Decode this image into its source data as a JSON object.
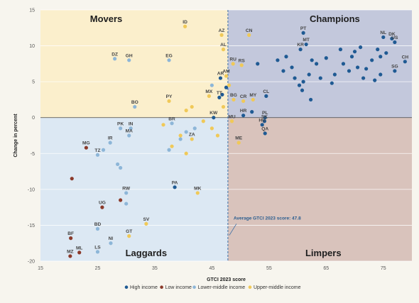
{
  "chart_data": {
    "type": "scatter",
    "xlabel": "GTCI 2023 score",
    "ylabel": "Change in percent",
    "xlim": [
      15,
      80
    ],
    "ylim": [
      -20,
      15
    ],
    "xticks": [
      15,
      25,
      35,
      45,
      55,
      65,
      75
    ],
    "yticks": [
      15,
      10,
      5,
      0,
      -5,
      -10,
      -15,
      -20
    ],
    "average": {
      "x": 47.8,
      "label": "Average GTCI 2023 score: 47.8"
    },
    "quadrants": {
      "top_left": "Movers",
      "top_right": "Champions",
      "bottom_left": "Laggards",
      "bottom_right": "Limpers"
    },
    "colors": {
      "High income": "#1f5a93",
      "Low income": "#8b3a2a",
      "Lower-middle income": "#8db6d8",
      "Upper-middle income": "#f0c958",
      "tl_bg": "#fbefcc",
      "tr_bg": "#c3c8dc",
      "bl_bg": "#dce8f3",
      "br_bg": "#d9c3bc",
      "avg_line": "#3a6ea5"
    },
    "series": [
      {
        "name": "High income",
        "points": [
          {
            "x": 61.0,
            "y": 11.8,
            "label": "PT"
          },
          {
            "x": 61.5,
            "y": 10.2,
            "label": "MT"
          },
          {
            "x": 60.5,
            "y": 9.5,
            "label": "KR"
          },
          {
            "x": 75.0,
            "y": 11.2,
            "label": "NL"
          },
          {
            "x": 76.5,
            "y": 11.0,
            "label": "DK"
          },
          {
            "x": 77.0,
            "y": 10.5,
            "label": "US"
          },
          {
            "x": 78.8,
            "y": 7.8,
            "label": "CH"
          },
          {
            "x": 77.0,
            "y": 6.5,
            "label": "SG"
          },
          {
            "x": 54.5,
            "y": 3.0,
            "label": "CL"
          },
          {
            "x": 54.3,
            "y": 0.0,
            "label": "PL"
          },
          {
            "x": 54.2,
            "y": -0.5,
            "label": "SK"
          },
          {
            "x": 53.8,
            "y": -1.0,
            "label": "HU"
          },
          {
            "x": 54.3,
            "y": -2.2,
            "label": "QA"
          },
          {
            "x": 50.5,
            "y": 0.3,
            "label": "HR"
          },
          {
            "x": 46.3,
            "y": 2.8,
            "label": "TT"
          },
          {
            "x": 45.3,
            "y": 0.0,
            "label": "KW"
          },
          {
            "x": 46.5,
            "y": 5.5,
            "label": "AR"
          },
          {
            "x": 38.5,
            "y": -9.7,
            "label": "PA"
          },
          {
            "x": 46.8,
            "y": 3.2,
            "label": ""
          },
          {
            "x": 47.5,
            "y": 4.2,
            "label": ""
          },
          {
            "x": 52.0,
            "y": 0.8,
            "label": ""
          },
          {
            "x": 53.0,
            "y": 7.5,
            "label": ""
          },
          {
            "x": 56.5,
            "y": 8.0,
            "label": ""
          },
          {
            "x": 57.5,
            "y": 6.5,
            "label": ""
          },
          {
            "x": 58.0,
            "y": 8.5,
            "label": ""
          },
          {
            "x": 59.0,
            "y": 7.0,
            "label": ""
          },
          {
            "x": 59.5,
            "y": 5.5,
            "label": ""
          },
          {
            "x": 60.3,
            "y": 4.5,
            "label": ""
          },
          {
            "x": 61.0,
            "y": 5.0,
            "label": ""
          },
          {
            "x": 60.8,
            "y": 3.8,
            "label": ""
          },
          {
            "x": 62.0,
            "y": 6.0,
            "label": ""
          },
          {
            "x": 62.5,
            "y": 8.0,
            "label": ""
          },
          {
            "x": 63.3,
            "y": 7.5,
            "label": ""
          },
          {
            "x": 64.0,
            "y": 5.5,
            "label": ""
          },
          {
            "x": 65.0,
            "y": 8.3,
            "label": ""
          },
          {
            "x": 66.5,
            "y": 6.0,
            "label": ""
          },
          {
            "x": 67.5,
            "y": 9.5,
            "label": ""
          },
          {
            "x": 68.0,
            "y": 7.5,
            "label": ""
          },
          {
            "x": 69.0,
            "y": 6.5,
            "label": ""
          },
          {
            "x": 69.5,
            "y": 8.5,
            "label": ""
          },
          {
            "x": 70.0,
            "y": 9.2,
            "label": ""
          },
          {
            "x": 70.5,
            "y": 7.0,
            "label": ""
          },
          {
            "x": 71.0,
            "y": 9.8,
            "label": ""
          },
          {
            "x": 72.0,
            "y": 6.8,
            "label": ""
          },
          {
            "x": 73.0,
            "y": 8.0,
            "label": ""
          },
          {
            "x": 74.0,
            "y": 9.5,
            "label": ""
          },
          {
            "x": 74.5,
            "y": 8.5,
            "label": ""
          },
          {
            "x": 73.5,
            "y": 5.2,
            "label": ""
          },
          {
            "x": 74.5,
            "y": 6.0,
            "label": ""
          },
          {
            "x": 62.3,
            "y": 2.5,
            "label": ""
          },
          {
            "x": 71.5,
            "y": 5.5,
            "label": ""
          },
          {
            "x": 75.5,
            "y": 9.0,
            "label": ""
          },
          {
            "x": 66.0,
            "y": 4.8,
            "label": ""
          }
        ]
      },
      {
        "name": "Low income",
        "points": [
          {
            "x": 23.0,
            "y": -4.2,
            "label": "MG"
          },
          {
            "x": 25.8,
            "y": -12.5,
            "label": "UG"
          },
          {
            "x": 20.3,
            "y": -16.8,
            "label": "BF"
          },
          {
            "x": 20.2,
            "y": -19.3,
            "label": "MZ"
          },
          {
            "x": 21.8,
            "y": -18.8,
            "label": "ML"
          },
          {
            "x": 29.0,
            "y": -11.5,
            "label": ""
          },
          {
            "x": 20.5,
            "y": -8.5,
            "label": ""
          }
        ]
      },
      {
        "name": "Lower-middle income",
        "points": [
          {
            "x": 30.5,
            "y": 8.0,
            "label": "GH"
          },
          {
            "x": 28.0,
            "y": 8.2,
            "label": "DZ"
          },
          {
            "x": 37.5,
            "y": 8.0,
            "label": "EG"
          },
          {
            "x": 31.5,
            "y": 1.5,
            "label": "BO"
          },
          {
            "x": 29.0,
            "y": -1.5,
            "label": "PK"
          },
          {
            "x": 30.8,
            "y": -1.5,
            "label": "IN"
          },
          {
            "x": 30.5,
            "y": -2.5,
            "label": "MA"
          },
          {
            "x": 27.2,
            "y": -3.5,
            "label": "IR"
          },
          {
            "x": 25.0,
            "y": -5.2,
            "label": "TZ"
          },
          {
            "x": 30.0,
            "y": -10.5,
            "label": "RW"
          },
          {
            "x": 25.0,
            "y": -15.5,
            "label": "BD"
          },
          {
            "x": 27.3,
            "y": -17.5,
            "label": "NI"
          },
          {
            "x": 25.0,
            "y": -18.7,
            "label": "LS"
          },
          {
            "x": 38.0,
            "y": -0.8,
            "label": "BR"
          },
          {
            "x": 45.0,
            "y": 4.5,
            "label": ""
          },
          {
            "x": 26.0,
            "y": -4.5,
            "label": ""
          },
          {
            "x": 28.5,
            "y": -6.5,
            "label": ""
          },
          {
            "x": 29.0,
            "y": -7.0,
            "label": ""
          },
          {
            "x": 30.0,
            "y": -12.0,
            "label": ""
          },
          {
            "x": 37.5,
            "y": -4.5,
            "label": ""
          },
          {
            "x": 40.5,
            "y": -2.0,
            "label": ""
          },
          {
            "x": 42.0,
            "y": -1.5,
            "label": ""
          },
          {
            "x": 39.5,
            "y": -3.0,
            "label": ""
          }
        ]
      },
      {
        "name": "Upper-middle income",
        "points": [
          {
            "x": 40.3,
            "y": 12.7,
            "label": "ID"
          },
          {
            "x": 46.7,
            "y": 11.5,
            "label": "AZ"
          },
          {
            "x": 51.5,
            "y": 11.5,
            "label": "CN"
          },
          {
            "x": 47.0,
            "y": 9.5,
            "label": "AL"
          },
          {
            "x": 48.7,
            "y": 7.5,
            "label": "RU"
          },
          {
            "x": 50.2,
            "y": 7.3,
            "label": "RS"
          },
          {
            "x": 47.5,
            "y": 5.8,
            "label": "AM"
          },
          {
            "x": 44.5,
            "y": 3.0,
            "label": "MX"
          },
          {
            "x": 37.5,
            "y": 2.3,
            "label": "PY"
          },
          {
            "x": 48.8,
            "y": 2.5,
            "label": "BG"
          },
          {
            "x": 50.5,
            "y": 2.3,
            "label": "CR"
          },
          {
            "x": 52.2,
            "y": 2.5,
            "label": "MY"
          },
          {
            "x": 48.5,
            "y": -0.5,
            "label": "MU"
          },
          {
            "x": 49.7,
            "y": -3.5,
            "label": "ME"
          },
          {
            "x": 41.5,
            "y": -3.0,
            "label": "ZA"
          },
          {
            "x": 42.5,
            "y": -10.5,
            "label": "MK"
          },
          {
            "x": 33.5,
            "y": -14.8,
            "label": "SV"
          },
          {
            "x": 30.5,
            "y": -16.5,
            "label": "GT"
          },
          {
            "x": 41.5,
            "y": 1.5,
            "label": ""
          },
          {
            "x": 40.5,
            "y": 1.0,
            "label": ""
          },
          {
            "x": 43.5,
            "y": -0.5,
            "label": ""
          },
          {
            "x": 45.0,
            "y": -1.5,
            "label": ""
          },
          {
            "x": 39.5,
            "y": -2.5,
            "label": ""
          },
          {
            "x": 38.0,
            "y": -4.0,
            "label": ""
          },
          {
            "x": 40.5,
            "y": -5.0,
            "label": ""
          },
          {
            "x": 36.5,
            "y": -1.0,
            "label": ""
          },
          {
            "x": 47.0,
            "y": 1.5,
            "label": ""
          },
          {
            "x": 48.0,
            "y": 4.5,
            "label": ""
          },
          {
            "x": 46.0,
            "y": -2.5,
            "label": ""
          }
        ]
      }
    ]
  }
}
